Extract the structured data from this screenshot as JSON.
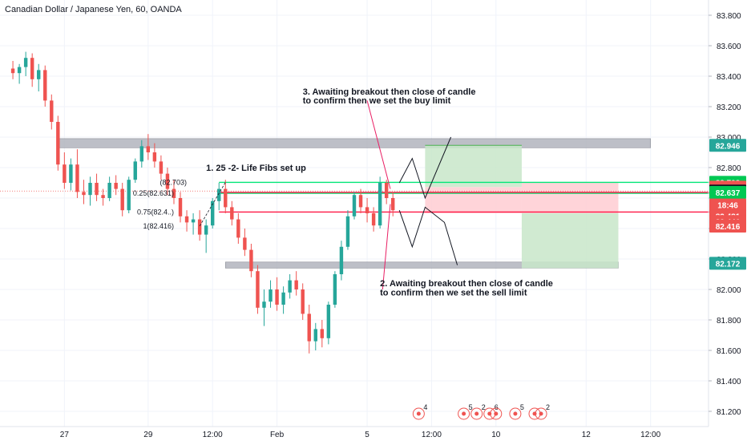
{
  "title": "Canadian Dollar / Japanese Yen, 60, OANDA",
  "colors": {
    "up": "#26a69a",
    "down": "#ef5350",
    "grid": "#f0f3fa",
    "axis_text": "#131722",
    "zone_gray": "#b2b5be",
    "green_line": "#00e676",
    "red_line": "#ff1744",
    "target_fill": "#c8e6c9",
    "stop_fill": "#ffcdd2",
    "annotation_line": "#e91e63",
    "arrow": "#131722"
  },
  "chart_data": {
    "type": "candlestick",
    "title": "Canadian Dollar / Japanese Yen, 60, OANDA",
    "ylim": [
      81.1,
      83.9
    ],
    "y_ticks": [
      "83.800",
      "83.600",
      "83.400",
      "83.200",
      "83.000",
      "82.800",
      "82.600",
      "82.400",
      "82.200",
      "82.000",
      "81.800",
      "81.600",
      "81.400",
      "81.200"
    ],
    "x_ticks": [
      {
        "label": "27",
        "t": 8
      },
      {
        "label": "29",
        "t": 21
      },
      {
        "label": "12:00",
        "t": 31
      },
      {
        "label": "Feb",
        "t": 41
      },
      {
        "label": "5",
        "t": 55
      },
      {
        "label": "12:00",
        "t": 65
      },
      {
        "label": "10",
        "t": 75
      },
      {
        "label": "12",
        "t": 89
      },
      {
        "label": "12:00",
        "t": 99
      }
    ],
    "price_labels": [
      {
        "text": "82.946",
        "value": 82.946,
        "color": "#26a69a"
      },
      {
        "text": "82.703",
        "value": 82.703,
        "color": "#00c853"
      },
      {
        "text": "82.672",
        "value": 82.672,
        "color": "#ef5350"
      },
      {
        "text": "82.646",
        "value": 82.646,
        "color": "#131722"
      },
      {
        "text": "82.637",
        "value": 82.637,
        "color": "#00c853"
      },
      {
        "text": "82.508",
        "value": 82.508,
        "color": "#ef5350"
      },
      {
        "text": "18:46",
        "value": 82.481,
        "color": "#ef5350",
        "offset": -14
      },
      {
        "text": "82.481",
        "value": 82.481,
        "color": "#ef5350"
      },
      {
        "text": "82.472",
        "value": 82.472,
        "color": "#131722",
        "offset": 6
      },
      {
        "text": "82.446",
        "value": 82.446,
        "color": "#ef5350"
      },
      {
        "text": "82.416",
        "value": 82.416,
        "color": "#ef5350"
      },
      {
        "text": "82.172",
        "value": 82.172,
        "color": "#26a69a"
      }
    ],
    "series": [
      {
        "t": 0,
        "o": 83.45,
        "h": 83.5,
        "l": 83.38,
        "c": 83.42
      },
      {
        "t": 1,
        "o": 83.42,
        "h": 83.48,
        "l": 83.35,
        "c": 83.46
      },
      {
        "t": 2,
        "o": 83.46,
        "h": 83.56,
        "l": 83.4,
        "c": 83.52
      },
      {
        "t": 3,
        "o": 83.52,
        "h": 83.55,
        "l": 83.33,
        "c": 83.38
      },
      {
        "t": 4,
        "o": 83.38,
        "h": 83.48,
        "l": 83.3,
        "c": 83.44
      },
      {
        "t": 5,
        "o": 83.44,
        "h": 83.47,
        "l": 83.2,
        "c": 83.24
      },
      {
        "t": 6,
        "o": 83.24,
        "h": 83.28,
        "l": 83.05,
        "c": 83.1
      },
      {
        "t": 7,
        "o": 83.1,
        "h": 83.14,
        "l": 82.78,
        "c": 82.82
      },
      {
        "t": 8,
        "o": 82.82,
        "h": 82.9,
        "l": 82.66,
        "c": 82.7
      },
      {
        "t": 9,
        "o": 82.7,
        "h": 82.86,
        "l": 82.65,
        "c": 82.82
      },
      {
        "t": 10,
        "o": 82.82,
        "h": 82.92,
        "l": 82.6,
        "c": 82.64
      },
      {
        "t": 11,
        "o": 82.64,
        "h": 82.72,
        "l": 82.56,
        "c": 82.62
      },
      {
        "t": 12,
        "o": 82.62,
        "h": 82.74,
        "l": 82.55,
        "c": 82.7
      },
      {
        "t": 13,
        "o": 82.7,
        "h": 82.76,
        "l": 82.58,
        "c": 82.62
      },
      {
        "t": 14,
        "o": 82.62,
        "h": 82.66,
        "l": 82.55,
        "c": 82.6
      },
      {
        "t": 15,
        "o": 82.6,
        "h": 82.74,
        "l": 82.58,
        "c": 82.7
      },
      {
        "t": 16,
        "o": 82.7,
        "h": 82.75,
        "l": 82.62,
        "c": 82.66
      },
      {
        "t": 17,
        "o": 82.66,
        "h": 82.7,
        "l": 82.48,
        "c": 82.52
      },
      {
        "t": 18,
        "o": 82.52,
        "h": 82.74,
        "l": 82.5,
        "c": 82.72
      },
      {
        "t": 19,
        "o": 82.72,
        "h": 82.86,
        "l": 82.7,
        "c": 82.84
      },
      {
        "t": 20,
        "o": 82.84,
        "h": 82.98,
        "l": 82.8,
        "c": 82.94
      },
      {
        "t": 21,
        "o": 82.94,
        "h": 83.02,
        "l": 82.85,
        "c": 82.9
      },
      {
        "t": 22,
        "o": 82.9,
        "h": 82.96,
        "l": 82.8,
        "c": 82.84
      },
      {
        "t": 23,
        "o": 82.84,
        "h": 82.88,
        "l": 82.72,
        "c": 82.76
      },
      {
        "t": 24,
        "o": 82.76,
        "h": 82.8,
        "l": 82.62,
        "c": 82.66
      },
      {
        "t": 25,
        "o": 82.66,
        "h": 82.72,
        "l": 82.56,
        "c": 82.6
      },
      {
        "t": 26,
        "o": 82.6,
        "h": 82.64,
        "l": 82.44,
        "c": 82.48
      },
      {
        "t": 27,
        "o": 82.48,
        "h": 82.52,
        "l": 82.38,
        "c": 82.44
      },
      {
        "t": 28,
        "o": 82.44,
        "h": 82.5,
        "l": 82.36,
        "c": 82.46
      },
      {
        "t": 29,
        "o": 82.46,
        "h": 82.52,
        "l": 82.32,
        "c": 82.36
      },
      {
        "t": 30,
        "o": 82.36,
        "h": 82.46,
        "l": 82.24,
        "c": 82.42
      },
      {
        "t": 31,
        "o": 82.42,
        "h": 82.6,
        "l": 82.4,
        "c": 82.58
      },
      {
        "t": 32,
        "o": 82.58,
        "h": 82.7,
        "l": 82.52,
        "c": 82.66
      },
      {
        "t": 33,
        "o": 82.66,
        "h": 82.72,
        "l": 82.5,
        "c": 82.54
      },
      {
        "t": 34,
        "o": 82.54,
        "h": 82.58,
        "l": 82.42,
        "c": 82.46
      },
      {
        "t": 35,
        "o": 82.46,
        "h": 82.5,
        "l": 82.3,
        "c": 82.34
      },
      {
        "t": 36,
        "o": 82.34,
        "h": 82.4,
        "l": 82.22,
        "c": 82.26
      },
      {
        "t": 37,
        "o": 82.26,
        "h": 82.3,
        "l": 82.08,
        "c": 82.12
      },
      {
        "t": 38,
        "o": 82.12,
        "h": 82.16,
        "l": 81.84,
        "c": 81.88
      },
      {
        "t": 39,
        "o": 81.88,
        "h": 82.0,
        "l": 81.76,
        "c": 81.92
      },
      {
        "t": 40,
        "o": 81.92,
        "h": 82.06,
        "l": 81.88,
        "c": 82.0
      },
      {
        "t": 41,
        "o": 82.0,
        "h": 82.08,
        "l": 81.86,
        "c": 81.9
      },
      {
        "t": 42,
        "o": 81.9,
        "h": 82.02,
        "l": 81.84,
        "c": 81.98
      },
      {
        "t": 43,
        "o": 81.98,
        "h": 82.1,
        "l": 81.94,
        "c": 82.06
      },
      {
        "t": 44,
        "o": 82.06,
        "h": 82.12,
        "l": 81.96,
        "c": 82.0
      },
      {
        "t": 45,
        "o": 82.0,
        "h": 82.04,
        "l": 81.8,
        "c": 81.84
      },
      {
        "t": 46,
        "o": 81.84,
        "h": 81.9,
        "l": 81.58,
        "c": 81.66
      },
      {
        "t": 47,
        "o": 81.66,
        "h": 81.78,
        "l": 81.6,
        "c": 81.74
      },
      {
        "t": 48,
        "o": 81.74,
        "h": 81.8,
        "l": 81.62,
        "c": 81.68
      },
      {
        "t": 49,
        "o": 81.68,
        "h": 81.92,
        "l": 81.64,
        "c": 81.9
      },
      {
        "t": 50,
        "o": 81.9,
        "h": 82.12,
        "l": 81.88,
        "c": 82.1
      },
      {
        "t": 51,
        "o": 82.1,
        "h": 82.32,
        "l": 82.06,
        "c": 82.28
      },
      {
        "t": 52,
        "o": 82.28,
        "h": 82.52,
        "l": 82.26,
        "c": 82.48
      },
      {
        "t": 53,
        "o": 82.48,
        "h": 82.64,
        "l": 82.46,
        "c": 82.62
      },
      {
        "t": 54,
        "o": 82.62,
        "h": 82.66,
        "l": 82.5,
        "c": 82.54
      },
      {
        "t": 55,
        "o": 82.54,
        "h": 82.6,
        "l": 82.44,
        "c": 82.5
      },
      {
        "t": 56,
        "o": 82.5,
        "h": 82.54,
        "l": 82.38,
        "c": 82.42
      },
      {
        "t": 57,
        "o": 82.42,
        "h": 82.74,
        "l": 82.4,
        "c": 82.7
      },
      {
        "t": 58,
        "o": 82.7,
        "h": 82.72,
        "l": 82.56,
        "c": 82.6
      },
      {
        "t": 59,
        "o": 82.6,
        "h": 82.64,
        "l": 82.48,
        "c": 82.52
      }
    ],
    "zones": [
      {
        "name": "resistance",
        "t0": 7,
        "t1": 99,
        "v0": 82.93,
        "v1": 82.99,
        "color": "#b2b5be"
      },
      {
        "name": "support",
        "t0": 33,
        "t1": 94,
        "v0": 82.14,
        "v1": 82.18,
        "color": "#b2b5be"
      }
    ],
    "hlines": [
      {
        "name": "level-82703",
        "t0": 32,
        "t1": 113,
        "v": 82.703,
        "color": "#00e676"
      },
      {
        "name": "level-82631",
        "t0": 32,
        "t1": 113,
        "v": 82.631,
        "color": "#00e676"
      },
      {
        "name": "level-82637",
        "t0": 32,
        "t1": 113,
        "v": 82.637,
        "color": "#ff1744"
      },
      {
        "name": "level-82508",
        "t0": 32,
        "t1": 113,
        "v": 82.508,
        "color": "#ff1744"
      }
    ],
    "position_long": {
      "t0": 64,
      "t1": 79,
      "target": 82.946,
      "entry": 82.672,
      "stop": 82.5
    },
    "position_short": {
      "t0": 79,
      "t1": 94,
      "target": 82.14,
      "entry": 82.5,
      "stop": 82.7
    },
    "fib_labels": [
      {
        "text": "(82.703)",
        "t": 27,
        "v": 82.703
      },
      {
        "text": "0.25(82.631)",
        "t": 25,
        "v": 82.631
      },
      {
        "text": "0.75(82.4..)",
        "t": 25,
        "v": 82.508
      },
      {
        "text": "1(82.416)",
        "t": 25,
        "v": 82.416
      }
    ],
    "annotations": [
      {
        "name": "note-fibs",
        "text": "1. 25 -2- Life Fibs set up",
        "t": 30,
        "v": 82.78
      },
      {
        "name": "note-buy-line1",
        "text": "3.  Awaiting breakout then close of candle",
        "t": 45,
        "v": 83.28
      },
      {
        "name": "note-buy-line2",
        "text": "to confirm then we set the buy limit",
        "t": 45,
        "v": 83.22
      },
      {
        "name": "note-sell-line1",
        "text": "2. Awaiting breakout then close of candle",
        "t": 57,
        "v": 82.02
      },
      {
        "name": "note-sell-line2",
        "text": "to confirm then we set the sell limit",
        "t": 57,
        "v": 81.96
      }
    ],
    "event_markers": [
      {
        "t": 63,
        "label": "4"
      },
      {
        "t": 70,
        "label": "5"
      },
      {
        "t": 72,
        "label": "2"
      },
      {
        "t": 74,
        "label": "6"
      },
      {
        "t": 75,
        "label": ""
      },
      {
        "t": 78,
        "label": "5"
      },
      {
        "t": 81,
        "label": ""
      },
      {
        "t": 82,
        "label": "2"
      }
    ]
  }
}
